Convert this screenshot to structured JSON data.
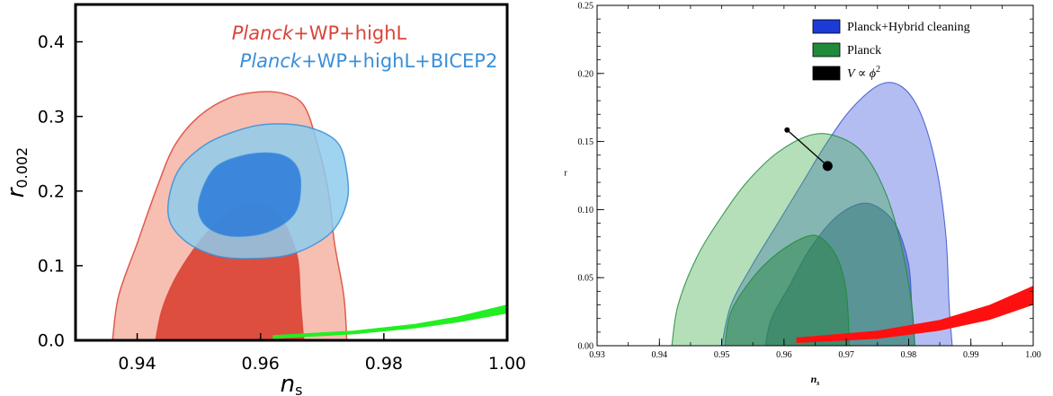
{
  "chart_data": [
    {
      "type": "area",
      "xlabel": "n",
      "xlabel_sub": "s",
      "ylabel": "r",
      "ylabel_sub": "0.002",
      "xlim": [
        0.93,
        1.0
      ],
      "ylim": [
        0.0,
        0.45
      ],
      "xticks": [
        "0.94",
        "0.96",
        "0.98",
        "1.00"
      ],
      "xtick_values": [
        0.94,
        0.96,
        0.98,
        1.0
      ],
      "yticks": [
        "0.0",
        "0.1",
        "0.2",
        "0.3",
        "0.4"
      ],
      "ytick_values": [
        0.0,
        0.1,
        0.2,
        0.3,
        0.4
      ],
      "grid": false,
      "legend_position": "top-right",
      "legend": [
        {
          "italic": "Planck",
          "rest": "+WP+highL",
          "color": "#d9453a"
        },
        {
          "italic": "Planck",
          "rest": "+WP+highL+BICEP2",
          "color": "#3a8fd9"
        }
      ],
      "series": [
        {
          "name": "Planck+WP+highL",
          "contours": {
            "outer": [
              [
                0.936,
                0.0
              ],
              [
                0.937,
                0.06
              ],
              [
                0.94,
                0.13
              ],
              [
                0.943,
                0.2
              ],
              [
                0.946,
                0.26
              ],
              [
                0.95,
                0.3
              ],
              [
                0.955,
                0.325
              ],
              [
                0.96,
                0.333
              ],
              [
                0.964,
                0.33
              ],
              [
                0.967,
                0.315
              ],
              [
                0.969,
                0.27
              ],
              [
                0.971,
                0.2
              ],
              [
                0.972,
                0.13
              ],
              [
                0.9735,
                0.06
              ],
              [
                0.974,
                0.0
              ]
            ],
            "inner": [
              [
                0.943,
                0.0
              ],
              [
                0.944,
                0.04
              ],
              [
                0.946,
                0.08
              ],
              [
                0.949,
                0.12
              ],
              [
                0.952,
                0.15
              ],
              [
                0.956,
                0.175
              ],
              [
                0.959,
                0.18
              ],
              [
                0.962,
                0.175
              ],
              [
                0.964,
                0.155
              ],
              [
                0.966,
                0.11
              ],
              [
                0.9665,
                0.05
              ],
              [
                0.967,
                0.0
              ]
            ]
          },
          "fill_outer": "#f4b4a4",
          "fill_inner": "#d93a2a",
          "stroke": "#d9453a"
        },
        {
          "name": "Planck+WP+highL+BICEP2",
          "contours": {
            "outer": [
              [
                0.945,
                0.17
              ],
              [
                0.9465,
                0.225
              ],
              [
                0.951,
                0.262
              ],
              [
                0.957,
                0.283
              ],
              [
                0.962,
                0.29
              ],
              [
                0.968,
                0.285
              ],
              [
                0.9725,
                0.265
              ],
              [
                0.974,
                0.225
              ],
              [
                0.974,
                0.185
              ],
              [
                0.9715,
                0.145
              ],
              [
                0.966,
                0.118
              ],
              [
                0.96,
                0.11
              ],
              [
                0.953,
                0.113
              ],
              [
                0.9475,
                0.135
              ]
            ],
            "inner": [
              [
                0.95,
                0.185
              ],
              [
                0.9525,
                0.23
              ],
              [
                0.9575,
                0.248
              ],
              [
                0.9625,
                0.25
              ],
              [
                0.9655,
                0.237
              ],
              [
                0.9665,
                0.21
              ],
              [
                0.9655,
                0.17
              ],
              [
                0.961,
                0.145
              ],
              [
                0.955,
                0.14
              ],
              [
                0.951,
                0.155
              ]
            ]
          },
          "fill_outer": "#8ecbec",
          "fill_inner": "#2a7ad9",
          "stroke": "#3a8fd9"
        }
      ],
      "band": {
        "name": "phi2-band",
        "color": "#22ee22",
        "upper": [
          [
            0.962,
            0.007
          ],
          [
            0.975,
            0.013
          ],
          [
            0.985,
            0.022
          ],
          [
            0.992,
            0.032
          ],
          [
            1.0,
            0.048
          ]
        ],
        "lower": [
          [
            1.0,
            0.036
          ],
          [
            0.992,
            0.024
          ],
          [
            0.985,
            0.016
          ],
          [
            0.975,
            0.008
          ],
          [
            0.962,
            0.002
          ]
        ]
      }
    },
    {
      "type": "area",
      "xlabel": "n",
      "xlabel_sub": "s",
      "ylabel": "r",
      "xlim": [
        0.93,
        1.0
      ],
      "ylim": [
        0.0,
        0.25
      ],
      "xticks": [
        "0.93",
        "0.94",
        "0.95",
        "0.96",
        "0.97",
        "0.98",
        "0.99",
        "1.00"
      ],
      "xtick_values": [
        0.93,
        0.94,
        0.95,
        0.96,
        0.97,
        0.98,
        0.99,
        1.0
      ],
      "yticks": [
        "0.00",
        "0.05",
        "0.10",
        "0.15",
        "0.20",
        "0.25"
      ],
      "ytick_values": [
        0.0,
        0.05,
        0.1,
        0.15,
        0.2,
        0.25
      ],
      "grid": false,
      "legend_position": "top-right",
      "legend": [
        {
          "label": "Planck+Hybrid cleaning",
          "color": "#1a3bd6"
        },
        {
          "label": "Planck",
          "color": "#1f8a3a"
        },
        {
          "label": "V ∝ ϕ",
          "sup": "2",
          "color": "#000000"
        }
      ],
      "series": [
        {
          "name": "Planck+Hybrid cleaning",
          "contours": {
            "outer": [
              [
                0.95,
                0.0
              ],
              [
                0.9515,
                0.03
              ],
              [
                0.955,
                0.06
              ],
              [
                0.959,
                0.09
              ],
              [
                0.963,
                0.12
              ],
              [
                0.967,
                0.15
              ],
              [
                0.971,
                0.175
              ],
              [
                0.9755,
                0.192
              ],
              [
                0.979,
                0.19
              ],
              [
                0.982,
                0.17
              ],
              [
                0.9845,
                0.13
              ],
              [
                0.986,
                0.08
              ],
              [
                0.9865,
                0.03
              ],
              [
                0.987,
                0.0
              ]
            ],
            "inner": [
              [
                0.957,
                0.0
              ],
              [
                0.958,
                0.02
              ],
              [
                0.961,
                0.045
              ],
              [
                0.964,
                0.07
              ],
              [
                0.968,
                0.093
              ],
              [
                0.972,
                0.104
              ],
              [
                0.975,
                0.102
              ],
              [
                0.978,
                0.088
              ],
              [
                0.98,
                0.06
              ],
              [
                0.9805,
                0.03
              ],
              [
                0.981,
                0.0
              ]
            ]
          },
          "fill_outer": "#b4bdf2",
          "fill_inner": "#6f86c7",
          "stroke": "#3a55d0"
        },
        {
          "name": "Planck",
          "contours": {
            "outer": [
              [
                0.942,
                0.0
              ],
              [
                0.943,
                0.03
              ],
              [
                0.946,
                0.065
              ],
              [
                0.95,
                0.095
              ],
              [
                0.954,
                0.12
              ],
              [
                0.959,
                0.142
              ],
              [
                0.9645,
                0.155
              ],
              [
                0.969,
                0.153
              ],
              [
                0.973,
                0.14
              ],
              [
                0.9765,
                0.11
              ],
              [
                0.979,
                0.07
              ],
              [
                0.9805,
                0.03
              ],
              [
                0.981,
                0.0
              ]
            ],
            "inner": [
              [
                0.9505,
                0.0
              ],
              [
                0.9515,
                0.025
              ],
              [
                0.955,
                0.05
              ],
              [
                0.959,
                0.068
              ],
              [
                0.9635,
                0.08
              ],
              [
                0.966,
                0.079
              ],
              [
                0.9685,
                0.065
              ],
              [
                0.97,
                0.04
              ],
              [
                0.9705,
                0.0
              ]
            ]
          },
          "fill_outer": "rgba(60,170,70,0.38)",
          "fill_inner": "rgba(30,130,60,0.45)",
          "stroke": "#1f8a3a"
        }
      ],
      "band": {
        "name": "phi2-band",
        "color": "#ff1010",
        "upper": [
          [
            0.962,
            0.006
          ],
          [
            0.975,
            0.011
          ],
          [
            0.985,
            0.019
          ],
          [
            0.993,
            0.03
          ],
          [
            1.0,
            0.044
          ]
        ],
        "lower": [
          [
            1.0,
            0.03
          ],
          [
            0.993,
            0.019
          ],
          [
            0.985,
            0.011
          ],
          [
            0.975,
            0.005
          ],
          [
            0.962,
            0.002
          ]
        ]
      },
      "phi2_segment": {
        "from": [
          0.9605,
          0.1585
        ],
        "to": [
          0.967,
          0.132
        ]
      }
    }
  ]
}
